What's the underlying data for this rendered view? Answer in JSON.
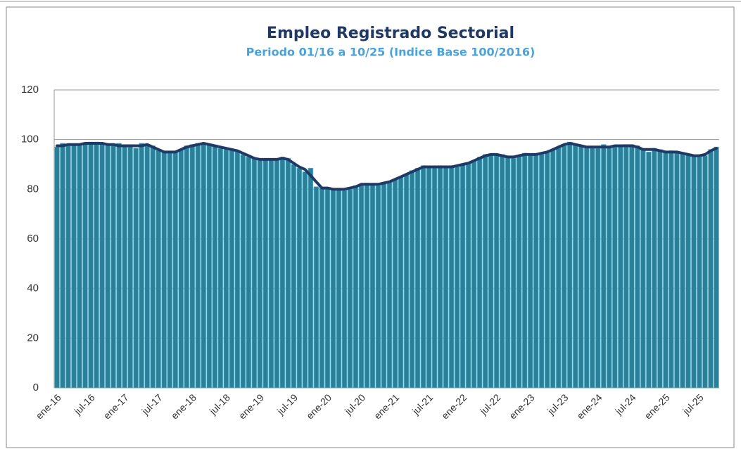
{
  "chart_data": {
    "type": "bar",
    "title": "Empleo Registrado Sectorial",
    "subtitle": "Periodo 01/16 a 10/25 (Indice Base 100/2016)",
    "categories": [
      "ene-16",
      null,
      null,
      null,
      null,
      null,
      "jul-16",
      null,
      null,
      null,
      null,
      null,
      "ene-17",
      null,
      null,
      null,
      null,
      null,
      "jul-17",
      null,
      null,
      null,
      null,
      null,
      "ene-18",
      null,
      null,
      null,
      null,
      null,
      "jul-18",
      null,
      null,
      null,
      null,
      null,
      "ene-19",
      null,
      null,
      null,
      null,
      null,
      "jul-19",
      null,
      null,
      null,
      null,
      null,
      "ene-20",
      null,
      null,
      null,
      null,
      null,
      "jul-20",
      null,
      null,
      null,
      null,
      null,
      "ene-21",
      null,
      null,
      null,
      null,
      null,
      "jul-21",
      null,
      null,
      null,
      null,
      null,
      "ene-22",
      null,
      null,
      null,
      null,
      null,
      "jul-22",
      null,
      null,
      null,
      null,
      null,
      "ene-23",
      null,
      null,
      null,
      null,
      null,
      "jul-23",
      null,
      null,
      null,
      null,
      null,
      "ene-24",
      null,
      null,
      null,
      null,
      null,
      "jul-24",
      null,
      null,
      null,
      null,
      null,
      "ene-25",
      null,
      null,
      null,
      null,
      null,
      "jul-25",
      null,
      null,
      null
    ],
    "series": [
      {
        "type": "bar",
        "color": "#2b7f98",
        "values": [
          97,
          98.5,
          97.5,
          98,
          98,
          98.5,
          99,
          99,
          98,
          98,
          97.5,
          98.5,
          97.5,
          97,
          96.5,
          98.5,
          98,
          97.5,
          96,
          95,
          94.5,
          95,
          96,
          97.5,
          98,
          98.5,
          98.5,
          98,
          97.5,
          96.5,
          96,
          96,
          95.5,
          94,
          93,
          92.5,
          92,
          92,
          92,
          92,
          93,
          92.5,
          90,
          88.5,
          87,
          88.5,
          81,
          80.5,
          80.5,
          80,
          80,
          79.5,
          80,
          81.5,
          82,
          82.5,
          82,
          81.5,
          82.5,
          83,
          84,
          85,
          86,
          87.5,
          88.5,
          89.5,
          89,
          89,
          89.5,
          89,
          89.5,
          89,
          90,
          90.5,
          91.5,
          93,
          94,
          94,
          93.5,
          94,
          93,
          92.5,
          93,
          94.5,
          93.5,
          94,
          94,
          95,
          96,
          97,
          98,
          99,
          98,
          97.5,
          97,
          97,
          96.5,
          98,
          97,
          97,
          97.5,
          98,
          98,
          97.5,
          96,
          95,
          96.5,
          96,
          95,
          95.5,
          95,
          94.5,
          94,
          93.5,
          93,
          93.5,
          96,
          97
        ]
      },
      {
        "type": "line",
        "color": "#203a66",
        "values": [
          97.5,
          97.5,
          98,
          98,
          98,
          98.5,
          98.5,
          98.5,
          98.5,
          98,
          98,
          97.5,
          97.5,
          97.5,
          97.5,
          97.5,
          98,
          97,
          96,
          95,
          95,
          95,
          96,
          97,
          97.5,
          98,
          98.5,
          98,
          97.5,
          97,
          96.5,
          96,
          95.5,
          94.5,
          93.5,
          92.5,
          92,
          92,
          92,
          92,
          92.5,
          92,
          90.5,
          89,
          88,
          85.5,
          83,
          80.5,
          80.5,
          80,
          80,
          80,
          80.5,
          81,
          82,
          82,
          82,
          82,
          82.5,
          83,
          84,
          85,
          86,
          87,
          88,
          89,
          89,
          89,
          89,
          89,
          89,
          89.5,
          90,
          90.5,
          91.5,
          92.5,
          93.5,
          94,
          94,
          93.5,
          93,
          93,
          93.5,
          94,
          94,
          94,
          94.5,
          95,
          96,
          97,
          98,
          98.5,
          98,
          97.5,
          97,
          97,
          97,
          97,
          97,
          97.5,
          97.5,
          97.5,
          97.5,
          97,
          96,
          96,
          96,
          95.5,
          95,
          95,
          95,
          94.5,
          94,
          93.5,
          93.5,
          94,
          95.5,
          96.5
        ]
      }
    ],
    "ylim": [
      0,
      120
    ],
    "yticks": [
      0,
      20,
      40,
      60,
      80,
      100,
      120
    ],
    "grid": true
  }
}
